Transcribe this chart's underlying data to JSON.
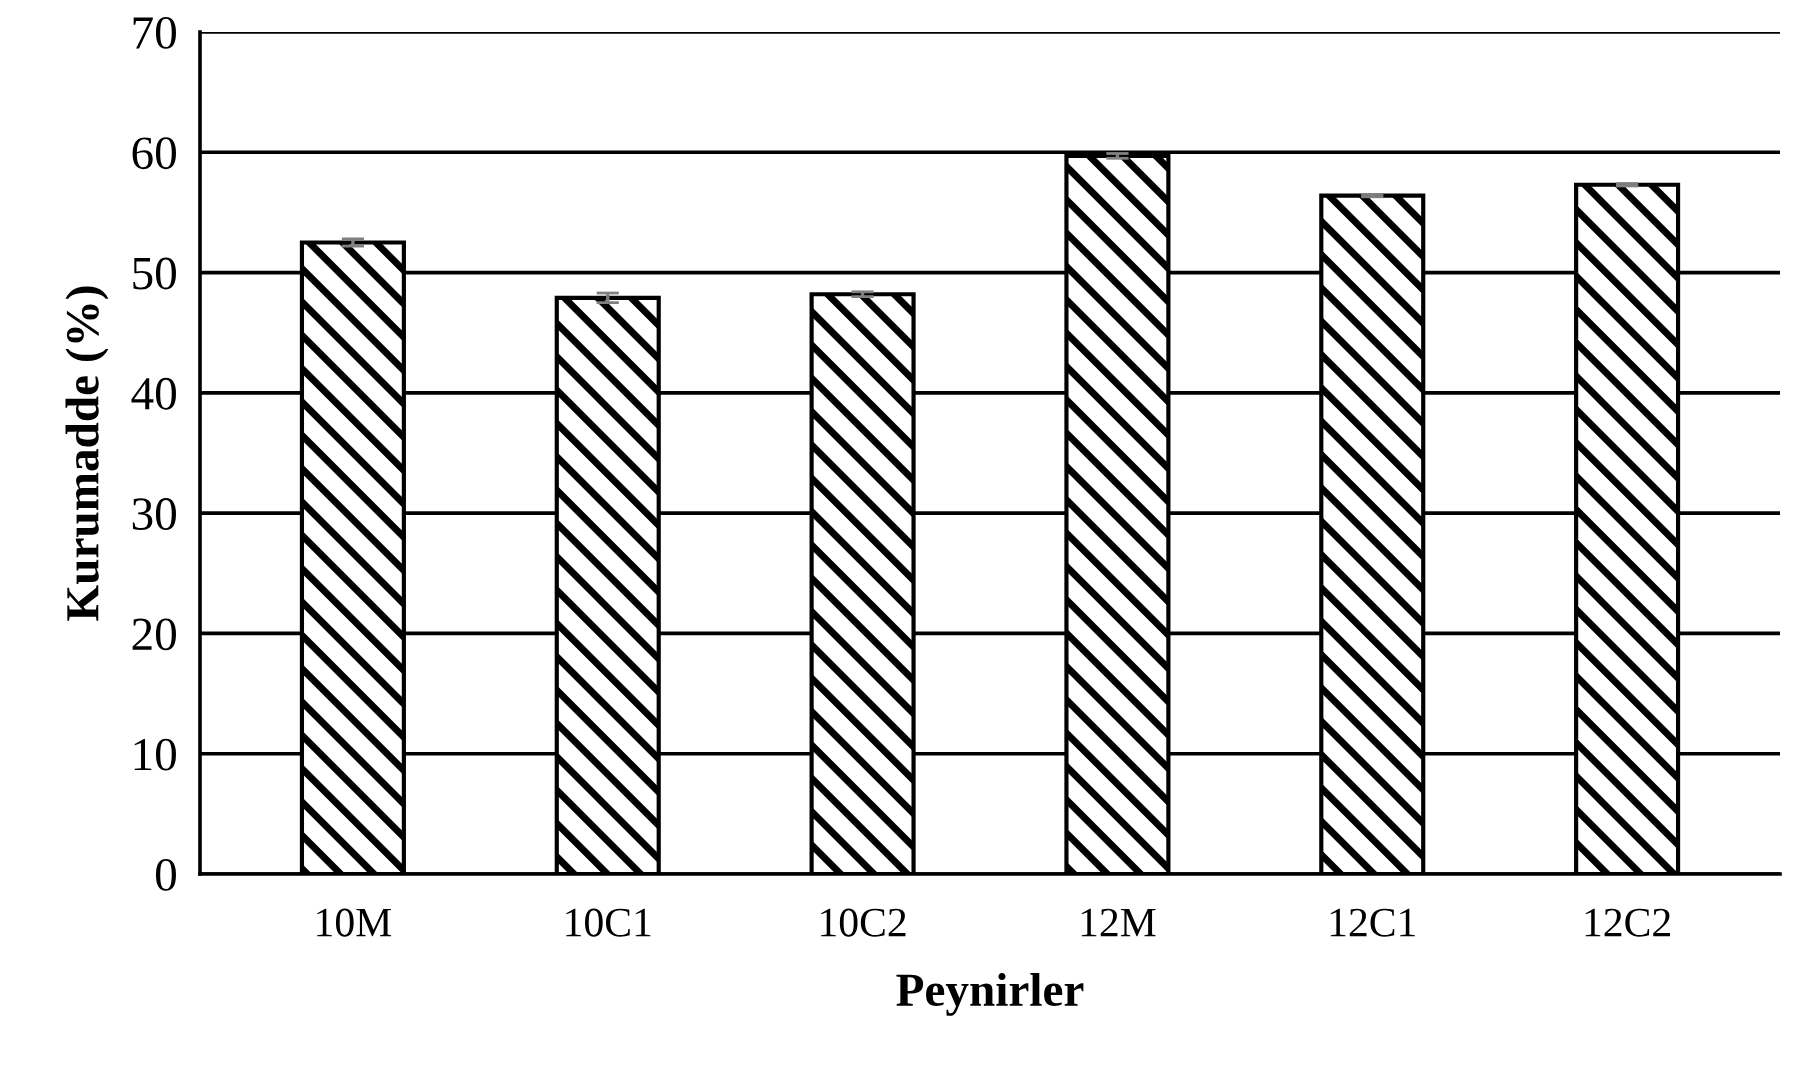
{
  "chart_data": {
    "type": "bar",
    "xlabel": "Peynirler",
    "ylabel": "Kurumadde (%)",
    "categories": [
      "10M",
      "10C1",
      "10C2",
      "12M",
      "12C1",
      "12C2"
    ],
    "values": [
      52.5,
      47.9,
      48.2,
      59.7,
      56.4,
      57.3
    ],
    "errors": [
      0.3,
      0.4,
      0.2,
      0.2,
      0.1,
      0.1
    ],
    "color": "#000000",
    "ylim": [
      0,
      70
    ],
    "yticks": [
      0,
      10,
      20,
      30,
      40,
      50,
      60,
      70
    ],
    "grid": "y"
  }
}
